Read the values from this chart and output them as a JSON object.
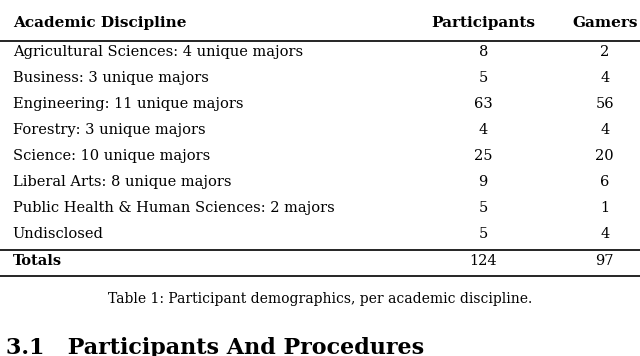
{
  "col_headers": [
    "Academic Discipline",
    "Participants",
    "Gamers"
  ],
  "rows": [
    [
      "Agricultural Sciences: 4 unique majors",
      "8",
      "2"
    ],
    [
      "Business: 3 unique majors",
      "5",
      "4"
    ],
    [
      "Engineering: 11 unique majors",
      "63",
      "56"
    ],
    [
      "Forestry: 3 unique majors",
      "4",
      "4"
    ],
    [
      "Science: 10 unique majors",
      "25",
      "20"
    ],
    [
      "Liberal Arts: 8 unique majors",
      "9",
      "6"
    ],
    [
      "Public Health & Human Sciences: 2 majors",
      "5",
      "1"
    ],
    [
      "Undisclosed",
      "5",
      "4"
    ]
  ],
  "totals_label": "Totals",
  "totals_values": [
    "124",
    "97"
  ],
  "caption": "Table 1: Participant demographics, per academic discipline.",
  "section_heading": "3.1   Participants And Procedures",
  "background_color": "#ffffff",
  "text_color": "#000000",
  "header_fontsize": 11,
  "body_fontsize": 10.5,
  "caption_fontsize": 10,
  "section_fontsize": 16
}
